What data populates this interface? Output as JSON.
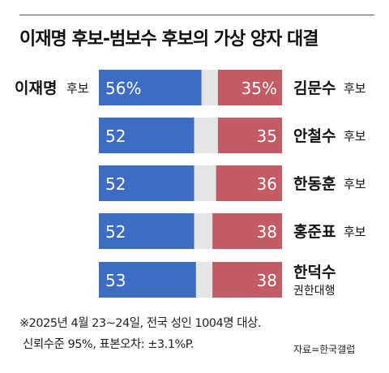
{
  "title": "이재명 후보-범보수 후보의 가상 양자 대결",
  "chart_data": {
    "type": "bar",
    "orientation": "horizontal",
    "stacking": "two-sided head-to-head",
    "left_candidate": {
      "name": "이재명",
      "suffix": "후보"
    },
    "percent_label": "%",
    "series": [
      {
        "left": 56,
        "right": 35
      },
      {
        "left": 52,
        "right": 35
      },
      {
        "left": 52,
        "right": 36
      },
      {
        "left": 52,
        "right": 38
      },
      {
        "left": 53,
        "right": 38
      }
    ],
    "right_candidates": [
      {
        "name": "김문수",
        "suffix": "후보",
        "subtitle": ""
      },
      {
        "name": "안철수",
        "suffix": "후보",
        "subtitle": ""
      },
      {
        "name": "한동훈",
        "suffix": "후보",
        "subtitle": ""
      },
      {
        "name": "홍준표",
        "suffix": "후보",
        "subtitle": ""
      },
      {
        "name": "한덕수",
        "suffix": "",
        "subtitle": "권한대행"
      }
    ],
    "scale_total": 100
  },
  "colors": {
    "left": "#3d6cc4",
    "right": "#c45a63",
    "gap": "#e5e5e5"
  },
  "note": {
    "line1": "※2025년 4월 23~24일, 전국 성인 1004명 대상.",
    "line2": "신뢰수준 95%, 표본오차: ±3.1%P."
  },
  "source": "자료=한국갤럽"
}
